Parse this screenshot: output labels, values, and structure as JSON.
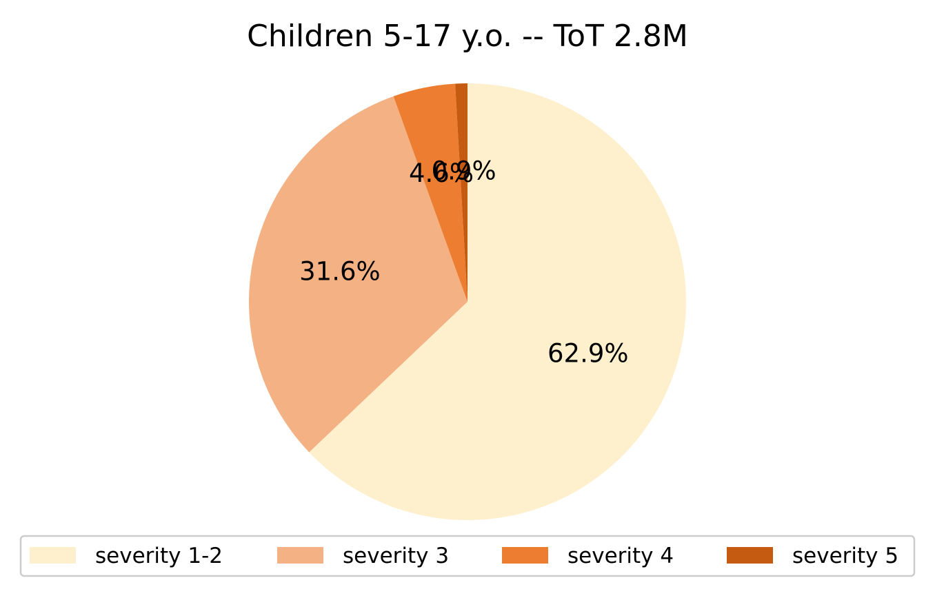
{
  "chart_data": {
    "type": "pie",
    "title": "Children 5-17 y.o. -- ToT 2.8M",
    "start_angle_deg": 90,
    "direction": "clockwise",
    "legend_placement": "bottom-center",
    "slices": [
      {
        "label": "severity 1-2",
        "percent": 62.9,
        "color": "#fff0cd",
        "value_label": "62.9%"
      },
      {
        "label": "severity 3",
        "percent": 31.6,
        "color": "#f4b183",
        "value_label": "31.6%"
      },
      {
        "label": "severity 4",
        "percent": 4.6,
        "color": "#ed7d31",
        "value_label": "4.6%"
      },
      {
        "label": "severity 5",
        "percent": 0.9,
        "color": "#c55a11",
        "value_label": "0.9%"
      }
    ]
  }
}
